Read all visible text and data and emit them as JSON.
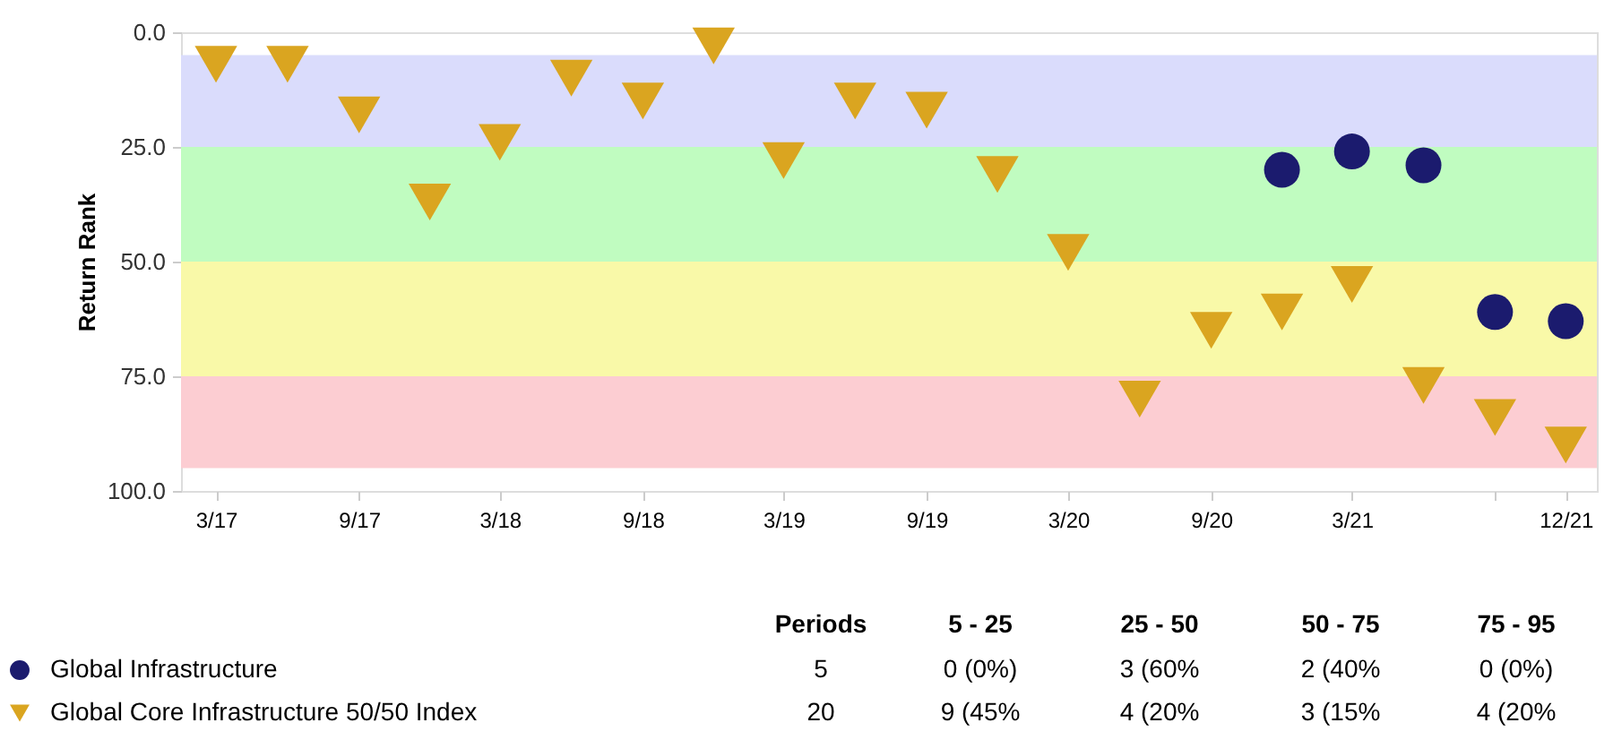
{
  "chart_data": {
    "type": "scatter",
    "ylabel": "Return Rank",
    "x": [
      "2017-03",
      "2017-06",
      "2017-09",
      "2017-12",
      "2018-03",
      "2018-06",
      "2018-09",
      "2018-12",
      "2019-03",
      "2019-06",
      "2019-09",
      "2019-12",
      "2020-03",
      "2020-06",
      "2020-09",
      "2020-12",
      "2021-03",
      "2021-06",
      "2021-09",
      "2021-12"
    ],
    "series": [
      {
        "name": "Global Infrastructure",
        "color": "#1b1b6e",
        "marker": "circle",
        "values": [
          null,
          null,
          null,
          null,
          null,
          null,
          null,
          null,
          null,
          null,
          null,
          null,
          null,
          null,
          null,
          30,
          26,
          29,
          61,
          63
        ]
      },
      {
        "name": "Global Core Infrastructure 50/50 Index",
        "color": "#daa520",
        "marker": "triangle",
        "values": [
          7,
          7,
          18,
          37,
          24,
          10,
          15,
          3,
          28,
          15,
          17,
          31,
          48,
          80,
          65,
          61,
          55,
          77,
          84,
          90
        ]
      }
    ],
    "xlim": [
      "2017-01-15",
      "2022-01-10"
    ],
    "xticks": [
      {
        "value": "2017-03",
        "label": "3/17"
      },
      {
        "value": "2017-09",
        "label": "9/17"
      },
      {
        "value": "2018-03",
        "label": "3/18"
      },
      {
        "value": "2018-09",
        "label": "9/18"
      },
      {
        "value": "2019-03",
        "label": "3/19"
      },
      {
        "value": "2019-09",
        "label": "9/19"
      },
      {
        "value": "2020-03",
        "label": "3/20"
      },
      {
        "value": "2020-09",
        "label": "9/20"
      },
      {
        "value": "2021-03",
        "label": "3/21"
      },
      {
        "value": "2021-09",
        "label": null
      },
      {
        "value": "2021-12",
        "label": "12/21"
      }
    ],
    "ylim": [
      100,
      0
    ],
    "yticks": [
      {
        "value": 0,
        "label": "0.0"
      },
      {
        "value": 25,
        "label": "25.0"
      },
      {
        "value": 50,
        "label": "50.0"
      },
      {
        "value": 75,
        "label": "75.0"
      },
      {
        "value": 100,
        "label": "100.0"
      }
    ],
    "bands": [
      {
        "axis": "y",
        "from": 5,
        "to": 25,
        "color": "#dadcfc"
      },
      {
        "axis": "y",
        "from": 25,
        "to": 50,
        "color": "#c0fcc0"
      },
      {
        "axis": "y",
        "from": 50,
        "to": 75,
        "color": "#f9f9a8"
      },
      {
        "axis": "y",
        "from": 75,
        "to": 95,
        "color": "#fccdd2"
      }
    ],
    "grid": false,
    "legend": "bottom left",
    "annotations": [
      "Periods",
      "5 - 25",
      "25 - 50",
      "50 - 75",
      "75 - 95",
      "5",
      "0 (0%)",
      "3 (60%",
      "2 (40%",
      "0 (0%)",
      "20",
      "9 (45%",
      "4 (20%",
      "3 (15%",
      "4 (20%"
    ]
  }
}
